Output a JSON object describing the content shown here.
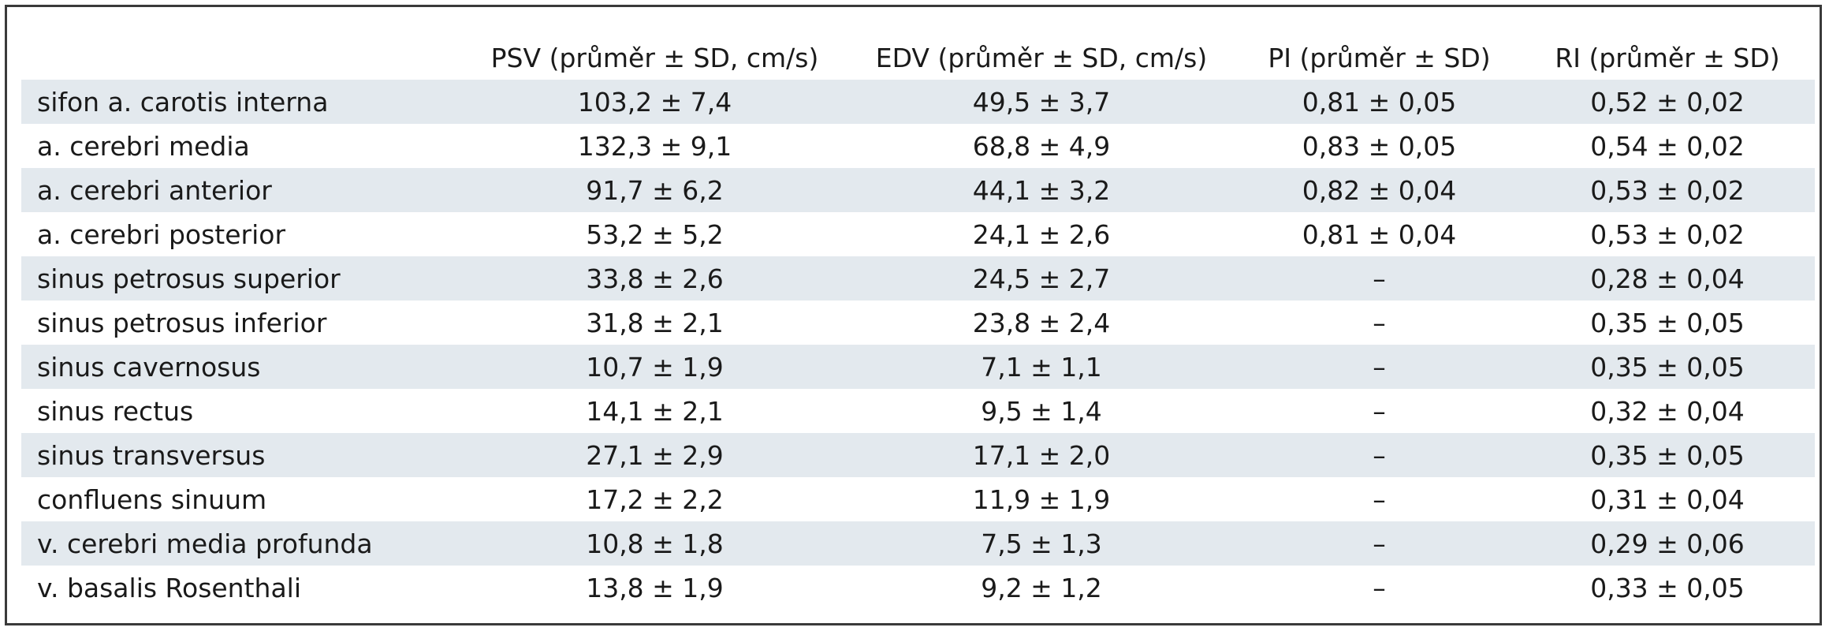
{
  "table": {
    "headers": [
      "",
      "PSV (průměr ± SD, cm/s)",
      "EDV (průměr ± SD, cm/s)",
      "PI (průměr ± SD)",
      "RI (průměr ± SD)"
    ],
    "rows": [
      [
        "sifon a. carotis interna",
        "103,2 ± 7,4",
        "49,5 ± 3,7",
        "0,81 ± 0,05",
        "0,52 ± 0,02"
      ],
      [
        "a. cerebri media",
        "132,3 ± 9,1",
        "68,8 ± 4,9",
        "0,83 ± 0,05",
        "0,54 ± 0,02"
      ],
      [
        "a. cerebri anterior",
        "91,7 ± 6,2",
        "44,1 ± 3,2",
        "0,82 ± 0,04",
        "0,53 ± 0,02"
      ],
      [
        "a. cerebri posterior",
        "53,2 ± 5,2",
        "24,1 ± 2,6",
        "0,81 ± 0,04",
        "0,53 ± 0,02"
      ],
      [
        "sinus petrosus superior",
        "33,8 ± 2,6",
        "24,5 ± 2,7",
        "–",
        "0,28 ± 0,04"
      ],
      [
        "sinus petrosus inferior",
        "31,8 ± 2,1",
        "23,8 ± 2,4",
        "–",
        "0,35 ± 0,05"
      ],
      [
        "sinus cavernosus",
        "10,7 ± 1,9",
        "7,1 ± 1,1",
        "–",
        "0,35 ± 0,05"
      ],
      [
        "sinus rectus",
        "14,1 ± 2,1",
        "9,5 ± 1,4",
        "–",
        "0,32 ± 0,04"
      ],
      [
        "sinus transversus",
        "27,1 ± 2,9",
        "17,1 ± 2,0",
        "–",
        "0,35 ± 0,05"
      ],
      [
        "confluens sinuum",
        "17,2 ± 2,2",
        "11,9 ± 1,9",
        "–",
        "0,31 ± 0,04"
      ],
      [
        "v. cerebri media profunda",
        "10,8 ± 1,8",
        "7,5 ± 1,3",
        "–",
        "0,29 ± 0,06"
      ],
      [
        "v. basalis Rosenthali",
        "13,8 ± 1,9",
        "9,2 ± 1,2",
        "–",
        "0,33 ± 0,05"
      ]
    ]
  },
  "colors": {
    "stripe": "#e3e9ee",
    "border": "#3a3a3a",
    "text": "#1a1a1a"
  }
}
